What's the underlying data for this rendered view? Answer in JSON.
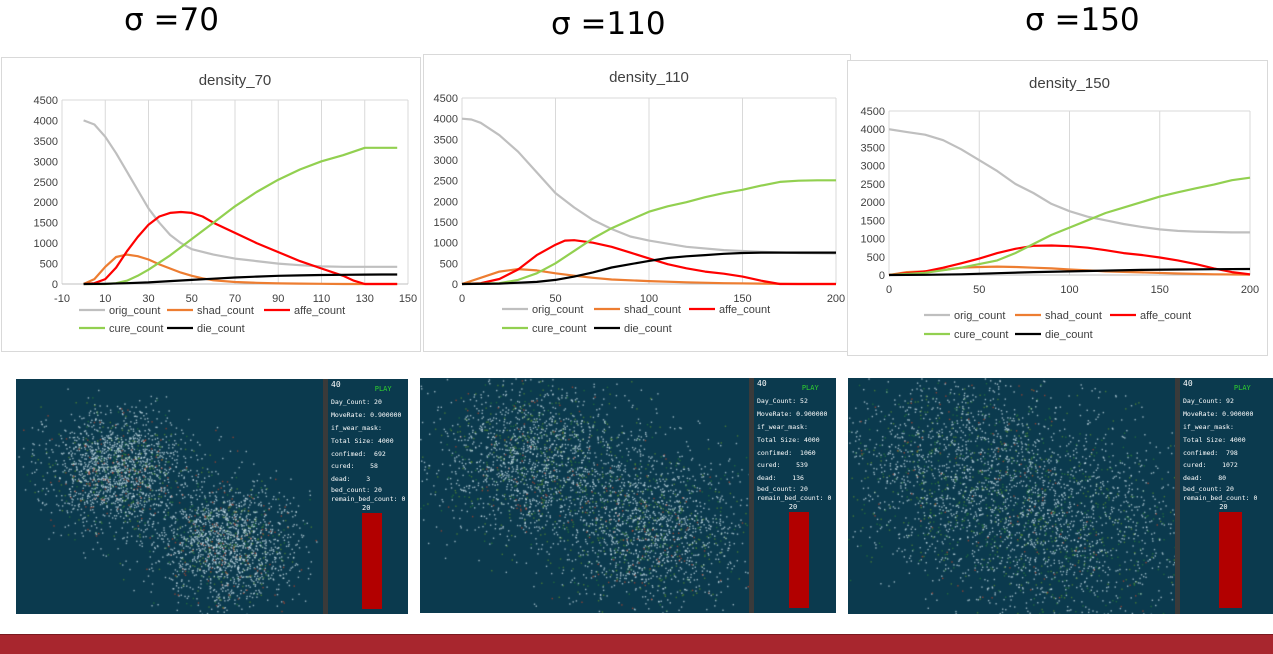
{
  "headings": [
    "σ =70",
    "σ =110",
    "σ =150"
  ],
  "legend": [
    "orig_count",
    "shad_count",
    "affe_count",
    "cure_count",
    "die_count"
  ],
  "colors": {
    "orig_count": "#bfbfbf",
    "shad_count": "#ed7d31",
    "affe_count": "#ff0000",
    "cure_count": "#92d050",
    "die_count": "#000000"
  },
  "chart_data": [
    {
      "type": "line",
      "title": "density_70",
      "xlim": [
        -10,
        150
      ],
      "xticks": [
        -10,
        10,
        30,
        50,
        70,
        90,
        110,
        130,
        150
      ],
      "ylim": [
        0,
        4500
      ],
      "yticks": [
        0,
        500,
        1000,
        1500,
        2000,
        2500,
        3000,
        3500,
        4000,
        4500
      ],
      "grid": "vertical",
      "legend_position": "bottom",
      "series": [
        {
          "name": "orig_count",
          "x": [
            0,
            5,
            10,
            15,
            20,
            25,
            30,
            35,
            40,
            45,
            50,
            60,
            70,
            80,
            90,
            100,
            110,
            120,
            130,
            140,
            145
          ],
          "y": [
            4000,
            3900,
            3600,
            3200,
            2750,
            2300,
            1850,
            1500,
            1200,
            1000,
            850,
            720,
            620,
            560,
            500,
            460,
            430,
            420,
            420,
            420,
            420
          ]
        },
        {
          "name": "shad_count",
          "x": [
            0,
            5,
            10,
            15,
            20,
            25,
            30,
            35,
            40,
            45,
            50,
            55,
            60,
            70,
            80,
            90,
            100,
            110,
            120,
            130,
            140,
            145
          ],
          "y": [
            0,
            120,
            420,
            660,
            720,
            680,
            600,
            480,
            380,
            280,
            200,
            140,
            90,
            50,
            30,
            15,
            10,
            5,
            0,
            0,
            0,
            0
          ]
        },
        {
          "name": "affe_count",
          "x": [
            0,
            5,
            10,
            15,
            20,
            25,
            30,
            35,
            40,
            45,
            50,
            55,
            60,
            70,
            80,
            90,
            100,
            110,
            120,
            125,
            130,
            140,
            145
          ],
          "y": [
            0,
            20,
            120,
            400,
            800,
            1150,
            1450,
            1650,
            1740,
            1760,
            1740,
            1650,
            1500,
            1250,
            1000,
            780,
            560,
            380,
            200,
            80,
            0,
            0,
            0
          ]
        },
        {
          "name": "cure_count",
          "x": [
            0,
            10,
            15,
            20,
            25,
            30,
            40,
            50,
            60,
            70,
            80,
            90,
            100,
            110,
            120,
            130,
            135,
            140,
            145
          ],
          "y": [
            0,
            0,
            20,
            80,
            200,
            350,
            700,
            1100,
            1500,
            1900,
            2250,
            2550,
            2800,
            3000,
            3150,
            3330,
            3330,
            3330,
            3330
          ]
        },
        {
          "name": "die_count",
          "x": [
            0,
            10,
            20,
            30,
            40,
            50,
            60,
            70,
            80,
            90,
            100,
            110,
            120,
            130,
            140,
            145
          ],
          "y": [
            0,
            5,
            20,
            40,
            70,
            100,
            130,
            160,
            180,
            200,
            210,
            220,
            225,
            230,
            232,
            232
          ]
        }
      ]
    },
    {
      "type": "line",
      "title": "density_110",
      "xlim": [
        0,
        200
      ],
      "xticks": [
        0,
        50,
        100,
        150,
        200
      ],
      "ylim": [
        0,
        4500
      ],
      "yticks": [
        0,
        500,
        1000,
        1500,
        2000,
        2500,
        3000,
        3500,
        4000,
        4500
      ],
      "grid": "vertical",
      "legend_position": "bottom",
      "series": [
        {
          "name": "orig_count",
          "x": [
            0,
            5,
            10,
            20,
            30,
            40,
            50,
            60,
            70,
            80,
            90,
            100,
            120,
            140,
            160,
            180,
            200
          ],
          "y": [
            4000,
            3980,
            3900,
            3600,
            3200,
            2700,
            2200,
            1850,
            1550,
            1330,
            1150,
            1050,
            900,
            820,
            780,
            750,
            740
          ]
        },
        {
          "name": "shad_count",
          "x": [
            0,
            10,
            20,
            30,
            40,
            50,
            60,
            70,
            80,
            100,
            120,
            140,
            160,
            180,
            200
          ],
          "y": [
            0,
            150,
            300,
            360,
            330,
            260,
            200,
            150,
            110,
            70,
            40,
            20,
            10,
            0,
            0
          ]
        },
        {
          "name": "affe_count",
          "x": [
            0,
            10,
            20,
            30,
            40,
            50,
            55,
            60,
            70,
            80,
            90,
            100,
            110,
            120,
            130,
            140,
            150,
            160,
            170,
            180,
            200
          ],
          "y": [
            0,
            20,
            120,
            350,
            700,
            950,
            1050,
            1060,
            1000,
            900,
            760,
            620,
            480,
            380,
            300,
            250,
            180,
            80,
            0,
            0,
            0
          ]
        },
        {
          "name": "cure_count",
          "x": [
            0,
            20,
            30,
            40,
            50,
            60,
            70,
            80,
            90,
            100,
            110,
            120,
            130,
            140,
            150,
            160,
            170,
            180,
            190,
            200
          ],
          "y": [
            0,
            20,
            100,
            260,
            500,
            800,
            1100,
            1350,
            1550,
            1750,
            1880,
            1980,
            2100,
            2200,
            2280,
            2380,
            2470,
            2500,
            2510,
            2510
          ]
        },
        {
          "name": "die_count",
          "x": [
            0,
            20,
            40,
            50,
            60,
            70,
            80,
            90,
            100,
            110,
            120,
            130,
            140,
            150,
            160,
            170,
            180,
            200
          ],
          "y": [
            0,
            10,
            50,
            100,
            180,
            280,
            400,
            480,
            560,
            630,
            670,
            700,
            730,
            750,
            760,
            760,
            760,
            760
          ]
        }
      ]
    },
    {
      "type": "line",
      "title": "density_150",
      "xlim": [
        0,
        200
      ],
      "xticks": [
        0,
        50,
        100,
        150,
        200
      ],
      "ylim": [
        0,
        4500
      ],
      "yticks": [
        0,
        500,
        1000,
        1500,
        2000,
        2500,
        3000,
        3500,
        4000,
        4500
      ],
      "grid": "vertical",
      "legend_position": "bottom",
      "series": [
        {
          "name": "orig_count",
          "x": [
            0,
            10,
            20,
            30,
            40,
            50,
            60,
            70,
            80,
            90,
            100,
            110,
            120,
            130,
            140,
            150,
            160,
            170,
            180,
            190,
            200
          ],
          "y": [
            4000,
            3920,
            3850,
            3700,
            3450,
            3150,
            2850,
            2500,
            2250,
            1950,
            1750,
            1600,
            1500,
            1400,
            1320,
            1250,
            1210,
            1190,
            1180,
            1170,
            1170
          ]
        },
        {
          "name": "shad_count",
          "x": [
            0,
            10,
            20,
            30,
            40,
            50,
            60,
            70,
            80,
            90,
            100,
            110,
            120,
            140,
            160,
            180,
            200
          ],
          "y": [
            0,
            80,
            100,
            140,
            200,
            220,
            230,
            220,
            200,
            180,
            150,
            130,
            100,
            70,
            40,
            20,
            10
          ]
        },
        {
          "name": "affe_count",
          "x": [
            0,
            10,
            20,
            30,
            40,
            50,
            60,
            70,
            80,
            90,
            100,
            110,
            120,
            130,
            140,
            150,
            160,
            170,
            180,
            190,
            200
          ],
          "y": [
            0,
            50,
            100,
            200,
            320,
            450,
            600,
            720,
            800,
            810,
            790,
            750,
            680,
            600,
            550,
            480,
            400,
            300,
            180,
            80,
            20
          ]
        },
        {
          "name": "cure_count",
          "x": [
            0,
            20,
            40,
            60,
            70,
            80,
            90,
            100,
            110,
            120,
            130,
            140,
            150,
            160,
            170,
            180,
            190,
            200
          ],
          "y": [
            0,
            60,
            200,
            400,
            600,
            850,
            1100,
            1300,
            1500,
            1700,
            1850,
            2000,
            2150,
            2270,
            2380,
            2480,
            2600,
            2670
          ]
        },
        {
          "name": "die_count",
          "x": [
            0,
            20,
            40,
            60,
            80,
            100,
            120,
            140,
            160,
            180,
            200
          ],
          "y": [
            0,
            5,
            20,
            50,
            80,
            100,
            120,
            140,
            150,
            160,
            165
          ]
        }
      ]
    }
  ],
  "simulations": [
    {
      "corner_number": "40",
      "play_label": "PLAY",
      "rows": [
        [
          "Day_Count:",
          "20"
        ],
        [
          "MoveRate:",
          "0.900000"
        ],
        [
          "if_wear_mask:",
          ""
        ],
        [
          "Total Size:",
          "4000"
        ],
        [
          "confimed:",
          "692"
        ],
        [
          "cured:",
          "58"
        ],
        [
          "dead:",
          "3"
        ],
        [
          "bed_count:",
          "20"
        ],
        [
          "remain_bed_count:",
          "0"
        ]
      ],
      "bar_label": "20",
      "bed_fill": 1.0
    },
    {
      "corner_number": "40",
      "play_label": "PLAY",
      "rows": [
        [
          "Day_Count:",
          "52"
        ],
        [
          "MoveRate:",
          "0.900000"
        ],
        [
          "if_wear_mask:",
          ""
        ],
        [
          "Total Size:",
          "4000"
        ],
        [
          "confimed:",
          "1060"
        ],
        [
          "cured:",
          "539"
        ],
        [
          "dead:",
          "136"
        ],
        [
          "bed_count:",
          "20"
        ],
        [
          "remain_bed_count:",
          "0"
        ]
      ],
      "bar_label": "20",
      "bed_fill": 1.0
    },
    {
      "corner_number": "40",
      "play_label": "PLAY",
      "rows": [
        [
          "Day_Count:",
          "92"
        ],
        [
          "MoveRate:",
          "0.900000"
        ],
        [
          "if_wear_mask:",
          ""
        ],
        [
          "Total Size:",
          "4000"
        ],
        [
          "confimed:",
          "798"
        ],
        [
          "cured:",
          "1072"
        ],
        [
          "dead:",
          "80"
        ],
        [
          "bed_count:",
          "20"
        ],
        [
          "remain_bed_count:",
          "0"
        ]
      ],
      "bar_label": "20",
      "bed_fill": 1.0
    }
  ]
}
